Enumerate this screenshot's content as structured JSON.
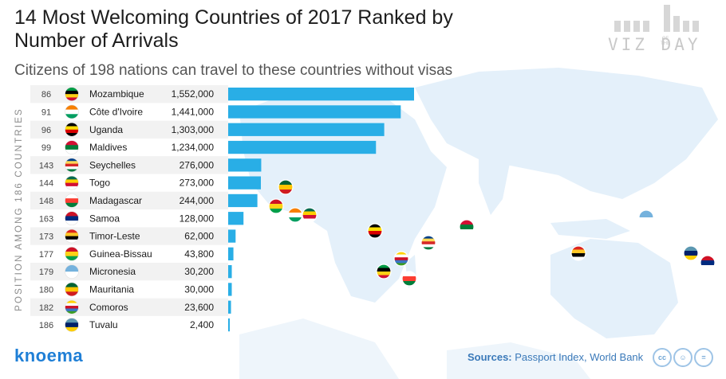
{
  "header": {
    "title": "14 Most Welcoming Countries of 2017 Ranked by Number of Arrivals",
    "subtitle": "Citizens of 198 nations can travel to these countries without visas"
  },
  "logo": {
    "text": "VIZ  DAY",
    "sub": "OF THE"
  },
  "side_label": "POSITION AMONG 186 COUNTRIES",
  "footer": {
    "brand": "knoema",
    "sources_label": "Sources:",
    "sources_text": "Passport Index, World Bank",
    "license_icons": [
      "cc-icon",
      "by-icon",
      "nd-icon"
    ]
  },
  "colors": {
    "bar": "#29aee6",
    "row_alt": "#f2f2f2",
    "map": "#e4f0fa",
    "brand": "#1f7fd6"
  },
  "chart_data": {
    "type": "bar",
    "orientation": "horizontal",
    "title": "14 Most Welcoming Countries of 2017 Ranked by Number of Arrivals",
    "categories": [
      "Mozambique",
      "Côte d'Ivoire",
      "Uganda",
      "Maldives",
      "Seychelles",
      "Togo",
      "Madagascar",
      "Samoa",
      "Timor-Leste",
      "Guinea-Bissau",
      "Micronesia",
      "Mauritania",
      "Comoros",
      "Tuvalu"
    ],
    "positions": [
      "86",
      "91",
      "96",
      "99",
      "143",
      "144",
      "148",
      "163",
      "173",
      "177",
      "179",
      "180",
      "182",
      "186"
    ],
    "value_labels": [
      "1,552,000",
      "1,441,000",
      "1,303,000",
      "1,234,000",
      "276,000",
      "273,000",
      "244,000",
      "128,000",
      "62,000",
      "43,800",
      "30,200",
      "30,000",
      "23,600",
      "2,400"
    ],
    "values": [
      1552000,
      1441000,
      1303000,
      1234000,
      276000,
      273000,
      244000,
      128000,
      62000,
      43800,
      30200,
      30000,
      23600,
      2400
    ],
    "flag_icons": [
      "mozambique-flag-icon",
      "cote-divoire-flag-icon",
      "uganda-flag-icon",
      "maldives-flag-icon",
      "seychelles-flag-icon",
      "togo-flag-icon",
      "madagascar-flag-icon",
      "samoa-flag-icon",
      "timor-leste-flag-icon",
      "guinea-bissau-flag-icon",
      "micronesia-flag-icon",
      "mauritania-flag-icon",
      "comoros-flag-icon",
      "tuvalu-flag-icon"
    ],
    "xlim": [
      0,
      1552000
    ],
    "grid": false,
    "legend": "none"
  }
}
